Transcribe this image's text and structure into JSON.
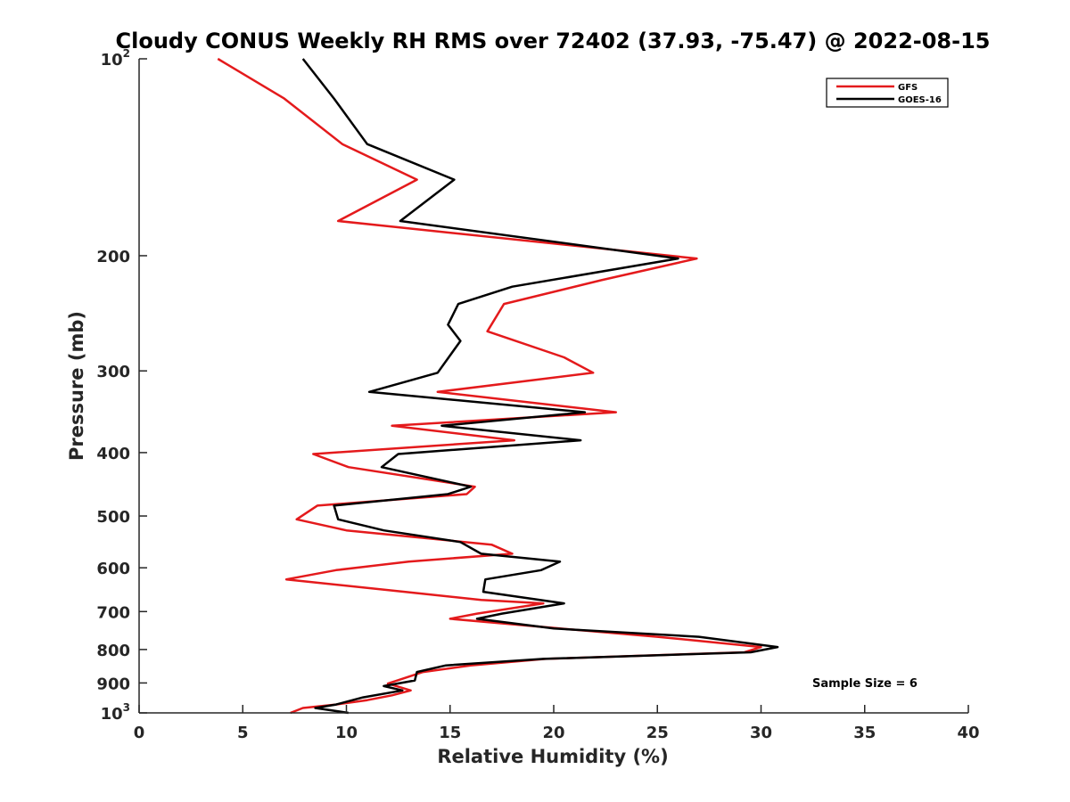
{
  "chart_data": {
    "type": "line",
    "title": "Cloudy CONUS Weekly RH RMS over 72402 (37.93, -75.47) @ 2022-08-15",
    "xlabel": "Relative Humidity (%)",
    "ylabel": "Pressure (mb)",
    "xlim": [
      0,
      40
    ],
    "ylim": [
      100,
      1000
    ],
    "yscale": "log",
    "y_reversed": true,
    "x_ticks": [
      "0",
      "5",
      "10",
      "15",
      "20",
      "25",
      "30",
      "35",
      "40"
    ],
    "x_tick_values": [
      0,
      5,
      10,
      15,
      20,
      25,
      30,
      35,
      40
    ],
    "y_ticks": [
      {
        "value": 100,
        "base": "10",
        "exp": "2"
      },
      {
        "value": 200,
        "label": "200"
      },
      {
        "value": 300,
        "label": "300"
      },
      {
        "value": 400,
        "label": "400"
      },
      {
        "value": 500,
        "label": "500"
      },
      {
        "value": 600,
        "label": "600"
      },
      {
        "value": 700,
        "label": "700"
      },
      {
        "value": 800,
        "label": "800"
      },
      {
        "value": 900,
        "label": "900"
      },
      {
        "value": 1000,
        "base": "10",
        "exp": "3"
      }
    ],
    "grid": false,
    "legend_position": "top-right",
    "annotation": "Sample Size = 6",
    "series": [
      {
        "name": "GFS",
        "color": "#e41a1c",
        "points": [
          [
            3.8,
            100
          ],
          [
            7.0,
            115
          ],
          [
            9.8,
            135
          ],
          [
            13.4,
            153
          ],
          [
            9.6,
            177
          ],
          [
            26.9,
            202
          ],
          [
            22.3,
            218
          ],
          [
            17.6,
            237
          ],
          [
            16.8,
            261
          ],
          [
            20.5,
            286
          ],
          [
            21.9,
            302
          ],
          [
            14.4,
            323
          ],
          [
            23.0,
            347
          ],
          [
            12.2,
            364
          ],
          [
            18.1,
            383
          ],
          [
            8.4,
            402
          ],
          [
            10.1,
            421
          ],
          [
            16.2,
            451
          ],
          [
            15.8,
            463
          ],
          [
            8.6,
            482
          ],
          [
            7.6,
            506
          ],
          [
            10.0,
            526
          ],
          [
            17.0,
            553
          ],
          [
            18.0,
            571
          ],
          [
            13.0,
            587
          ],
          [
            9.5,
            605
          ],
          [
            7.1,
            625
          ],
          [
            12.8,
            653
          ],
          [
            16.5,
            672
          ],
          [
            19.5,
            680
          ],
          [
            16.3,
            705
          ],
          [
            15.0,
            718
          ],
          [
            20.3,
            743
          ],
          [
            25.0,
            765
          ],
          [
            30.0,
            793
          ],
          [
            29.2,
            808
          ],
          [
            19.6,
            827
          ],
          [
            16.0,
            846
          ],
          [
            13.7,
            866
          ],
          [
            12.0,
            902
          ],
          [
            13.1,
            924
          ],
          [
            12.2,
            940
          ],
          [
            11.0,
            956
          ],
          [
            9.5,
            971
          ],
          [
            7.9,
            983
          ],
          [
            7.3,
            1000
          ]
        ]
      },
      {
        "name": "GOES-16",
        "color": "#000000",
        "points": [
          [
            7.9,
            100
          ],
          [
            9.4,
            115
          ],
          [
            11.0,
            135
          ],
          [
            15.2,
            153
          ],
          [
            12.6,
            177
          ],
          [
            26.0,
            202
          ],
          [
            18.0,
            223
          ],
          [
            15.4,
            237
          ],
          [
            14.9,
            255
          ],
          [
            15.5,
            270
          ],
          [
            14.4,
            302
          ],
          [
            11.1,
            323
          ],
          [
            21.5,
            347
          ],
          [
            14.6,
            364
          ],
          [
            21.3,
            383
          ],
          [
            12.5,
            402
          ],
          [
            11.7,
            421
          ],
          [
            16.0,
            451
          ],
          [
            14.9,
            463
          ],
          [
            9.4,
            482
          ],
          [
            9.6,
            506
          ],
          [
            11.8,
            526
          ],
          [
            15.5,
            548
          ],
          [
            16.5,
            571
          ],
          [
            20.3,
            587
          ],
          [
            19.4,
            605
          ],
          [
            16.7,
            625
          ],
          [
            16.6,
            653
          ],
          [
            20.5,
            680
          ],
          [
            17.5,
            705
          ],
          [
            16.3,
            718
          ],
          [
            20.0,
            743
          ],
          [
            27.0,
            765
          ],
          [
            30.8,
            793
          ],
          [
            29.5,
            808
          ],
          [
            19.5,
            827
          ],
          [
            14.8,
            846
          ],
          [
            13.4,
            866
          ],
          [
            13.3,
            892
          ],
          [
            11.8,
            910
          ],
          [
            12.7,
            924
          ],
          [
            10.8,
            947
          ],
          [
            9.5,
            971
          ],
          [
            8.5,
            983
          ],
          [
            10.1,
            1000
          ]
        ]
      }
    ]
  }
}
